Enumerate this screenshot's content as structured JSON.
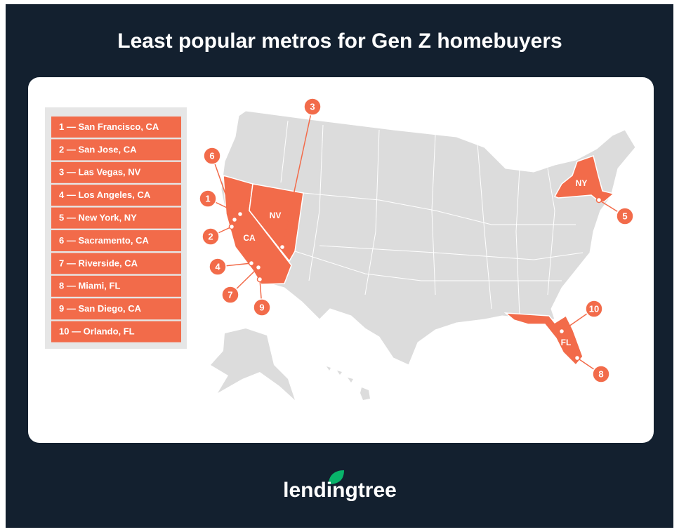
{
  "header": {
    "title": "Least popular metros for Gen Z homebuyers"
  },
  "legend": {
    "items": [
      "1 — San Francisco, CA",
      "2 — San Jose, CA",
      "3 — Las Vegas, NV",
      "4 — Los Angeles, CA",
      "5 — New York, NY",
      "6 — Sacramento, CA",
      "7 — Riverside, CA",
      "8 — Miami, FL",
      "9 — San Diego, CA",
      "10 — Orlando, FL"
    ]
  },
  "map": {
    "state_labels": [
      "NV",
      "CA",
      "NY",
      "FL"
    ],
    "markers": [
      "1",
      "2",
      "3",
      "4",
      "5",
      "6",
      "7",
      "8",
      "9",
      "10"
    ]
  },
  "footer": {
    "logo": "lendingtree"
  }
}
